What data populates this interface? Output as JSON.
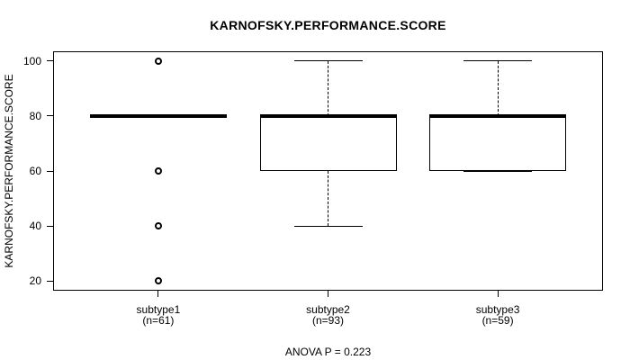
{
  "chart_data": {
    "type": "boxplot",
    "title": "KARNOFSKY.PERFORMANCE.SCORE",
    "ylabel": "KARNOFSKY.PERFORMANCE.SCORE",
    "xlabel": "",
    "annotation": "ANOVA P = 0.223",
    "yticks": [
      20,
      40,
      60,
      80,
      100
    ],
    "ylim": [
      16.5,
      103.5
    ],
    "xlim": [
      0.38,
      3.62
    ],
    "grid": false,
    "legend": null,
    "colors": {
      "foreground": "#000000",
      "background": "#ffffff"
    },
    "groups": [
      {
        "label": "subtype1",
        "n_label": "(n=61)",
        "x": 1,
        "whisker_low": 80,
        "q1": 80,
        "median": 80,
        "q3": 80,
        "whisker_high": 80,
        "outliers": [
          100,
          60,
          40,
          20
        ]
      },
      {
        "label": "subtype2",
        "n_label": "(n=93)",
        "x": 2,
        "whisker_low": 40,
        "q1": 60,
        "median": 80,
        "q3": 80,
        "whisker_high": 100,
        "outliers": []
      },
      {
        "label": "subtype3",
        "n_label": "(n=59)",
        "x": 3,
        "whisker_low": 60,
        "q1": 60,
        "median": 80,
        "q3": 80,
        "whisker_high": 100,
        "outliers": []
      }
    ]
  }
}
